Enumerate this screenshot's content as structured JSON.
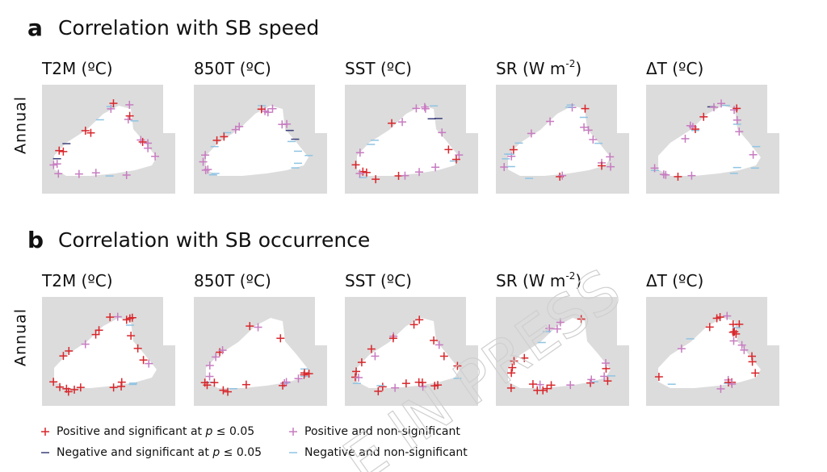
{
  "panels": [
    {
      "letter": "a",
      "title": "Correlation with SB speed",
      "row_label": "Annual",
      "columns": [
        {
          "text": "T2M (ºC)"
        },
        {
          "text": "850T  (ºC)"
        },
        {
          "text": "SST  (ºC)"
        },
        {
          "text": "SR  (W m",
          "sup": "-2",
          "after": ")"
        },
        {
          "text": "ΔT (ºC)"
        }
      ]
    },
    {
      "letter": "b",
      "title": "Correlation with SB occurrence",
      "row_label": "Annual",
      "columns": [
        {
          "text": "T2M (ºC)"
        },
        {
          "text": "850T  (ºC)"
        },
        {
          "text": "SST  (ºC)"
        },
        {
          "text": "SR  (W m",
          "sup": "-2",
          "after": ")"
        },
        {
          "text": "ΔT (ºC)"
        }
      ]
    }
  ],
  "legend": [
    {
      "before": "Positive and significant at ",
      "italic": "p",
      "after": " ≤ 0.05"
    },
    {
      "before": "Negative and significant at ",
      "italic": "p",
      "after": " ≤ 0.05"
    },
    {
      "before": "Positive and non-significant"
    },
    {
      "before": "Negative and non-significant"
    }
  ],
  "watermark": "E IN PRESS"
}
